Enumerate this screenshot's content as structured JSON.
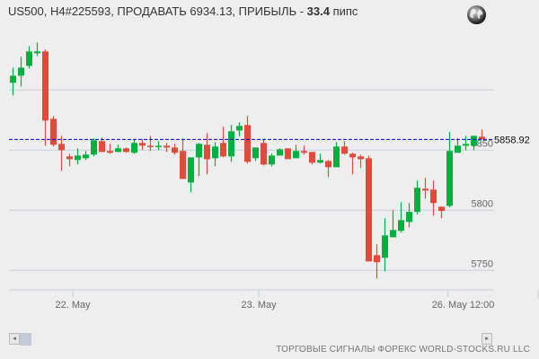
{
  "header": {
    "title_prefix": "US500, H4#225593, ПРОДАВАТЬ 6934.13, ПРИБЫЛЬ - ",
    "profit_value": "33.4",
    "profit_unit": " пипс",
    "globe_icon": "globe-icon"
  },
  "chart_data": {
    "type": "candlestick",
    "y_ticks": [
      {
        "value": 5900,
        "label": ""
      },
      {
        "value": 5850,
        "label": "5850"
      },
      {
        "value": 5800,
        "label": "5800"
      },
      {
        "value": 5750,
        "label": "5750"
      }
    ],
    "x_ticks": [
      {
        "candle_index": 7.4,
        "label": "22. May"
      },
      {
        "candle_index": 30.4,
        "label": "23. May"
      },
      {
        "candle_index": 53.8,
        "label": "26. May  12:00"
      }
    ],
    "current_price": 5858.92,
    "current_price_label": "5858.92",
    "colors": {
      "up": "#00b140",
      "down": "#e04b3c",
      "price_line": "#0000cc",
      "grid": "#c5d0dc"
    },
    "ohlc": [
      [
        5906.0,
        5918.6,
        5895.5,
        5911.9
      ],
      [
        5911.9,
        5927.6,
        5903.0,
        5918.6
      ],
      [
        5920.1,
        5936.5,
        5917.9,
        5932.1
      ],
      [
        5930.6,
        5939.5,
        5928.3,
        5932.1
      ],
      [
        5932.1,
        5933.6,
        5853.7,
        5874.6
      ],
      [
        5876.1,
        5878.4,
        5853.0,
        5854.5
      ],
      [
        5855.2,
        5861.9,
        5832.8,
        5850.0
      ],
      [
        5844.8,
        5847.0,
        5836.6,
        5842.5
      ],
      [
        5841.8,
        5851.5,
        5838.1,
        5845.5
      ],
      [
        5843.3,
        5849.3,
        5841.8,
        5846.3
      ],
      [
        5846.3,
        5859.7,
        5844.8,
        5858.2
      ],
      [
        5857.5,
        5860.4,
        5848.5,
        5848.5
      ],
      [
        5849.3,
        5855.2,
        5847.0,
        5847.8
      ],
      [
        5848.5,
        5854.5,
        5848.5,
        5851.5
      ],
      [
        5851.5,
        5852.2,
        5847.8,
        5848.5
      ],
      [
        5847.8,
        5859.0,
        5847.0,
        5856.0
      ],
      [
        5856.0,
        5859.0,
        5850.0,
        5853.7
      ],
      [
        5853.7,
        5861.9,
        5849.3,
        5853.0
      ],
      [
        5853.0,
        5857.5,
        5850.0,
        5853.7
      ],
      [
        5853.7,
        5856.0,
        5848.5,
        5852.2
      ],
      [
        5852.2,
        5855.2,
        5846.3,
        5847.8
      ],
      [
        5849.3,
        5859.7,
        5826.1,
        5826.1
      ],
      [
        5823.1,
        5844.0,
        5814.9,
        5844.0
      ],
      [
        5844.0,
        5856.0,
        5828.4,
        5855.2
      ],
      [
        5854.5,
        5864.2,
        5829.9,
        5842.5
      ],
      [
        5843.3,
        5856.7,
        5836.6,
        5853.0
      ],
      [
        5856.0,
        5869.4,
        5844.0,
        5844.8
      ],
      [
        5844.8,
        5870.9,
        5840.3,
        5865.7
      ],
      [
        5866.4,
        5873.1,
        5861.2,
        5870.1
      ],
      [
        5870.9,
        5878.4,
        5838.8,
        5840.3
      ],
      [
        5843.3,
        5852.2,
        5841.0,
        5852.2
      ],
      [
        5856.0,
        5859.0,
        5837.3,
        5838.1
      ],
      [
        5838.1,
        5847.0,
        5836.6,
        5845.5
      ],
      [
        5845.5,
        5851.5,
        5845.5,
        5850.7
      ],
      [
        5851.5,
        5851.5,
        5842.5,
        5842.5
      ],
      [
        5843.3,
        5854.5,
        5843.3,
        5849.3
      ],
      [
        5849.3,
        5853.7,
        5846.3,
        5847.8
      ],
      [
        5848.5,
        5848.5,
        5838.1,
        5839.6
      ],
      [
        5839.6,
        5847.0,
        5838.8,
        5841.8
      ],
      [
        5841.0,
        5841.8,
        5827.6,
        5835.8
      ],
      [
        5835.8,
        5856.7,
        5835.8,
        5853.0
      ],
      [
        5853.0,
        5857.5,
        5846.3,
        5847.0
      ],
      [
        5847.0,
        5847.8,
        5829.9,
        5844.0
      ],
      [
        5844.8,
        5846.3,
        5835.1,
        5842.5
      ],
      [
        5843.3,
        5845.5,
        5757.5,
        5757.5
      ],
      [
        5762.7,
        5771.7,
        5743.3,
        5756.8
      ],
      [
        5760.5,
        5793.3,
        5749.3,
        5779.1
      ],
      [
        5777.6,
        5800.0,
        5777.6,
        5783.6
      ],
      [
        5782.9,
        5806.7,
        5781.4,
        5791.8
      ],
      [
        5790.3,
        5806.0,
        5785.8,
        5798.7
      ],
      [
        5798.7,
        5824.6,
        5796.5,
        5818.7
      ],
      [
        5817.9,
        5826.9,
        5809.7,
        5816.4
      ],
      [
        5817.2,
        5824.6,
        5795.5,
        5806.0
      ],
      [
        5803.0,
        5803.0,
        5793.3,
        5799.5
      ],
      [
        5803.7,
        5865.1,
        5802.3,
        5849.3
      ],
      [
        5847.8,
        5859.7,
        5847.8,
        5853.7
      ],
      [
        5853.7,
        5861.9,
        5850.0,
        5855.2
      ],
      [
        5853.7,
        5861.9,
        5850.0,
        5861.9
      ],
      [
        5861.2,
        5867.2,
        5858.9,
        5858.9
      ]
    ]
  },
  "scrollbar": {
    "left_arrow": "◂",
    "right_arrow": "▸"
  },
  "footer": {
    "text": "ТОРГОВЫЕ СИГНАЛЫ ФОРЕКС WORLD-STOCKS.RU LLC"
  }
}
